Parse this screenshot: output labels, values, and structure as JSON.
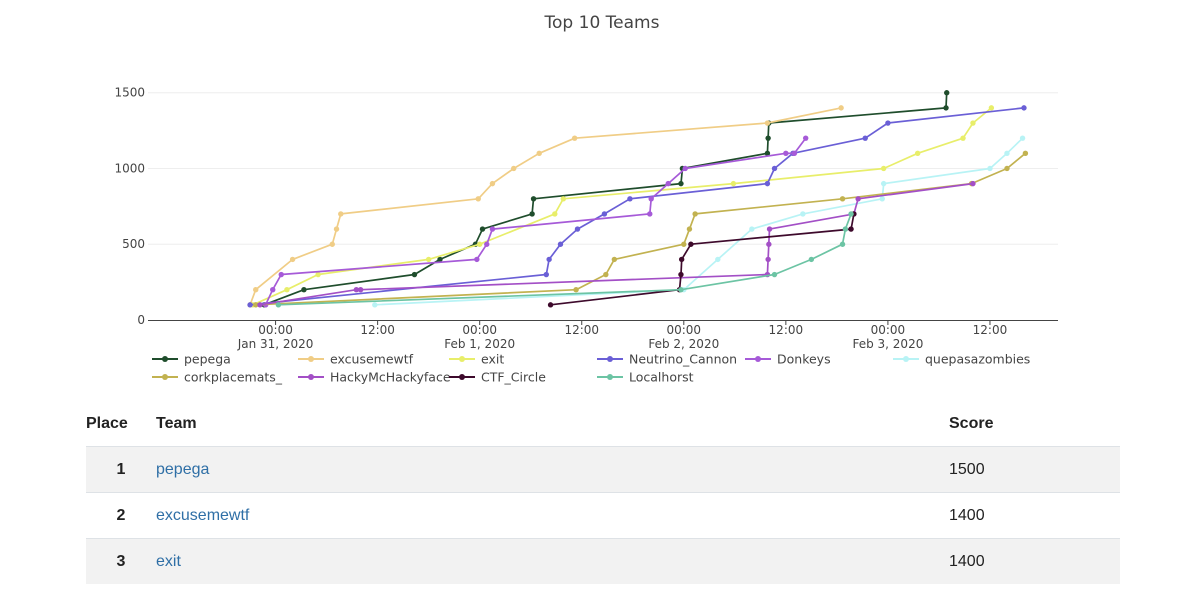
{
  "chart_data": {
    "type": "line",
    "title": "Top 10 Teams",
    "xlabel": "",
    "ylabel": "",
    "xlim": [
      "2020-01-30T09:00",
      "2020-02-03T20:00"
    ],
    "ylim": [
      0,
      1650
    ],
    "y_ticks": [
      0,
      500,
      1000,
      1500
    ],
    "x_ticks": [
      {
        "t": "2020-01-31T00:00",
        "label": [
          "00:00",
          "Jan 31, 2020"
        ]
      },
      {
        "t": "2020-01-31T12:00",
        "label": [
          "12:00",
          ""
        ]
      },
      {
        "t": "2020-02-01T00:00",
        "label": [
          "00:00",
          "Feb 1, 2020"
        ]
      },
      {
        "t": "2020-02-01T12:00",
        "label": [
          "12:00",
          ""
        ]
      },
      {
        "t": "2020-02-02T00:00",
        "label": [
          "00:00",
          "Feb 2, 2020"
        ]
      },
      {
        "t": "2020-02-02T12:00",
        "label": [
          "12:00",
          ""
        ]
      },
      {
        "t": "2020-02-03T00:00",
        "label": [
          "00:00",
          "Feb 3, 2020"
        ]
      },
      {
        "t": "2020-02-03T12:00",
        "label": [
          "12:00",
          ""
        ]
      }
    ],
    "legend_position": "bottom",
    "series": [
      {
        "name": "pepega",
        "color": "#1f4d2c",
        "points": [
          [
            "2020-01-30T22:40",
            100
          ],
          [
            "2020-01-31T03:20",
            200
          ],
          [
            "2020-01-31T16:20",
            300
          ],
          [
            "2020-01-31T19:20",
            400
          ],
          [
            "2020-01-31T23:30",
            500
          ],
          [
            "2020-02-01T00:20",
            600
          ],
          [
            "2020-02-01T06:10",
            700
          ],
          [
            "2020-02-01T06:20",
            800
          ],
          [
            "2020-02-01T23:40",
            900
          ],
          [
            "2020-02-01T23:50",
            1000
          ],
          [
            "2020-02-02T09:50",
            1100
          ],
          [
            "2020-02-02T09:55",
            1200
          ],
          [
            "2020-02-02T10:00",
            1300
          ],
          [
            "2020-02-03T06:50",
            1400
          ],
          [
            "2020-02-03T06:55",
            1500
          ]
        ]
      },
      {
        "name": "excusemewtf",
        "color": "#f0cd86",
        "points": [
          [
            "2020-01-30T21:00",
            100
          ],
          [
            "2020-01-30T21:40",
            200
          ],
          [
            "2020-01-31T02:00",
            400
          ],
          [
            "2020-01-31T06:40",
            500
          ],
          [
            "2020-01-31T07:10",
            600
          ],
          [
            "2020-01-31T07:40",
            700
          ],
          [
            "2020-01-31T23:50",
            800
          ],
          [
            "2020-02-01T01:30",
            900
          ],
          [
            "2020-02-01T04:00",
            1000
          ],
          [
            "2020-02-01T07:00",
            1100
          ],
          [
            "2020-02-01T11:10",
            1200
          ],
          [
            "2020-02-02T09:50",
            1300
          ],
          [
            "2020-02-02T18:30",
            1400
          ]
        ]
      },
      {
        "name": "exit",
        "color": "#e8ee6a",
        "points": [
          [
            "2020-01-30T21:20",
            100
          ],
          [
            "2020-01-31T01:20",
            200
          ],
          [
            "2020-01-31T05:00",
            300
          ],
          [
            "2020-01-31T18:00",
            400
          ],
          [
            "2020-02-01T00:00",
            500
          ],
          [
            "2020-02-01T08:50",
            700
          ],
          [
            "2020-02-01T09:50",
            800
          ],
          [
            "2020-02-02T05:50",
            900
          ],
          [
            "2020-02-02T23:30",
            1000
          ],
          [
            "2020-02-03T03:30",
            1100
          ],
          [
            "2020-02-03T08:50",
            1200
          ],
          [
            "2020-02-03T10:00",
            1300
          ],
          [
            "2020-02-03T12:10",
            1400
          ]
        ]
      },
      {
        "name": "Neutrino_Cannon",
        "color": "#6a5fd6",
        "points": [
          [
            "2020-01-30T21:00",
            100
          ],
          [
            "2020-02-01T07:50",
            300
          ],
          [
            "2020-02-01T08:10",
            400
          ],
          [
            "2020-02-01T09:30",
            500
          ],
          [
            "2020-02-01T11:30",
            600
          ],
          [
            "2020-02-01T14:40",
            700
          ],
          [
            "2020-02-01T17:40",
            800
          ],
          [
            "2020-02-02T09:50",
            900
          ],
          [
            "2020-02-02T10:40",
            1000
          ],
          [
            "2020-02-02T12:50",
            1100
          ],
          [
            "2020-02-02T21:20",
            1200
          ],
          [
            "2020-02-03T00:00",
            1300
          ],
          [
            "2020-02-03T16:00",
            1400
          ]
        ]
      },
      {
        "name": "Donkeys",
        "color": "#a65ad8",
        "points": [
          [
            "2020-01-30T22:50",
            100
          ],
          [
            "2020-01-30T23:40",
            200
          ],
          [
            "2020-01-31T00:40",
            300
          ],
          [
            "2020-01-31T23:40",
            400
          ],
          [
            "2020-02-01T00:50",
            500
          ],
          [
            "2020-02-01T01:30",
            600
          ],
          [
            "2020-02-01T20:00",
            700
          ],
          [
            "2020-02-01T20:10",
            800
          ],
          [
            "2020-02-01T22:10",
            900
          ],
          [
            "2020-02-02T00:10",
            1000
          ],
          [
            "2020-02-02T12:00",
            1100
          ],
          [
            "2020-02-02T13:00",
            1100
          ],
          [
            "2020-02-02T14:20",
            1200
          ]
        ]
      },
      {
        "name": "quepasazombies",
        "color": "#b8f3f5",
        "points": [
          [
            "2020-01-31T11:40",
            100
          ],
          [
            "2020-02-02T00:00",
            200
          ],
          [
            "2020-02-02T04:00",
            400
          ],
          [
            "2020-02-02T08:00",
            600
          ],
          [
            "2020-02-02T14:00",
            700
          ],
          [
            "2020-02-02T23:20",
            800
          ],
          [
            "2020-02-02T23:30",
            900
          ],
          [
            "2020-02-03T12:00",
            1000
          ],
          [
            "2020-02-03T14:00",
            1100
          ],
          [
            "2020-02-03T15:50",
            1200
          ]
        ]
      },
      {
        "name": "corkplacemats_",
        "color": "#c2b250",
        "points": [
          [
            "2020-01-30T21:40",
            100
          ],
          [
            "2020-02-01T11:20",
            200
          ],
          [
            "2020-02-01T14:50",
            300
          ],
          [
            "2020-02-01T15:50",
            400
          ],
          [
            "2020-02-02T00:00",
            500
          ],
          [
            "2020-02-02T00:40",
            600
          ],
          [
            "2020-02-02T01:20",
            700
          ],
          [
            "2020-02-02T18:40",
            800
          ],
          [
            "2020-02-03T09:50",
            900
          ],
          [
            "2020-02-03T14:00",
            1000
          ],
          [
            "2020-02-03T16:10",
            1100
          ]
        ]
      },
      {
        "name": "HackyMcHackyface",
        "color": "#a34fc6",
        "points": [
          [
            "2020-01-30T22:10",
            100
          ],
          [
            "2020-01-31T09:30",
            200
          ],
          [
            "2020-01-31T10:00",
            200
          ],
          [
            "2020-02-02T09:50",
            300
          ],
          [
            "2020-02-02T09:55",
            400
          ],
          [
            "2020-02-02T10:00",
            500
          ],
          [
            "2020-02-02T10:05",
            600
          ],
          [
            "2020-02-02T20:00",
            700
          ],
          [
            "2020-02-02T20:30",
            800
          ],
          [
            "2020-02-03T10:00",
            900
          ]
        ]
      },
      {
        "name": "CTF_Circle",
        "color": "#3e0a2c",
        "points": [
          [
            "2020-02-01T08:20",
            100
          ],
          [
            "2020-02-01T23:30",
            200
          ],
          [
            "2020-02-01T23:40",
            300
          ],
          [
            "2020-02-01T23:45",
            400
          ],
          [
            "2020-02-02T00:50",
            500
          ],
          [
            "2020-02-02T19:40",
            600
          ],
          [
            "2020-02-02T20:00",
            700
          ]
        ]
      },
      {
        "name": "Localhorst",
        "color": "#6cc4a4",
        "points": [
          [
            "2020-01-31T00:20",
            100
          ],
          [
            "2020-02-01T23:40",
            200
          ],
          [
            "2020-02-02T10:40",
            300
          ],
          [
            "2020-02-02T15:00",
            400
          ],
          [
            "2020-02-02T18:40",
            500
          ],
          [
            "2020-02-02T19:00",
            600
          ],
          [
            "2020-02-02T19:40",
            700
          ]
        ]
      }
    ]
  },
  "legend_rows": [
    [
      "pepega",
      "excusemewtf",
      "exit",
      "Neutrino_Cannon",
      "Donkeys",
      "quepasazombies"
    ],
    [
      "corkplacemats_",
      "HackyMcHackyface",
      "CTF_Circle",
      "Localhorst"
    ]
  ],
  "table": {
    "headers": {
      "place": "Place",
      "team": "Team",
      "score": "Score"
    },
    "rows": [
      {
        "place": "1",
        "team": "pepega",
        "score": "1500"
      },
      {
        "place": "2",
        "team": "excusemewtf",
        "score": "1400"
      },
      {
        "place": "3",
        "team": "exit",
        "score": "1400"
      }
    ]
  }
}
